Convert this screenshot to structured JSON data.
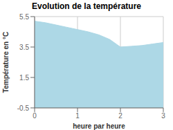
{
  "chart_data": {
    "type": "area",
    "title": "Evolution de la température",
    "x_label": "heure par heure",
    "y_label": "Température en °C",
    "x": [
      0,
      0.25,
      0.5,
      0.75,
      1.0,
      1.25,
      1.5,
      1.75,
      2.0,
      2.25,
      2.5,
      2.75,
      3.0
    ],
    "values": [
      5.2,
      5.1,
      4.95,
      4.8,
      4.65,
      4.5,
      4.3,
      4.0,
      3.5,
      3.55,
      3.6,
      3.7,
      3.8
    ],
    "xlim": [
      0,
      3
    ],
    "ylim": [
      -0.5,
      5.5
    ],
    "xticks": [
      0,
      1,
      2,
      3
    ],
    "yticks": [
      -0.5,
      1.5,
      3.5,
      5.5
    ],
    "color": "#add8e6",
    "grid": true
  }
}
